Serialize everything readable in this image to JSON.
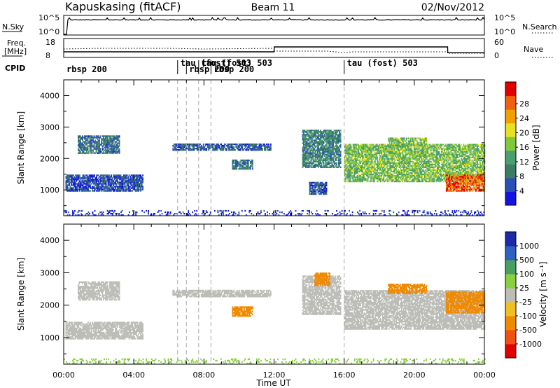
{
  "header": {
    "station": "Kapuskasing (fitACF)",
    "beam": "Beam 11",
    "date": "02/Nov/2012"
  },
  "panels": {
    "nsky_label": "N.Sky",
    "nsearch_label": "N.Search",
    "freq_label_1": "Freq.",
    "freq_label_2": "[MHz]",
    "nave_label": "Nave",
    "cpid_label": "CPID",
    "nsky_ticks": [
      "10^5",
      "10^0"
    ],
    "nsearch_ticks": [
      "10^5",
      "10^0"
    ],
    "freq_ticks": [
      "18",
      "8"
    ],
    "nave_ticks": [
      "60",
      "0"
    ]
  },
  "colors": {
    "power": [
      "#1414e0",
      "#2a50b8",
      "#3c7c64",
      "#4a9e70",
      "#82c83c",
      "#e8e020",
      "#f0a000",
      "#f06010",
      "#e00000"
    ],
    "velocity": [
      "#1a2aa8",
      "#3060c0",
      "#48a060",
      "#88d040",
      "#bdbdb8",
      "#f0c020",
      "#f08a00",
      "#f05010",
      "#e00000"
    ],
    "ground_scatter": "#bdbdb8"
  },
  "chart_data": [
    {
      "type": "line",
      "name": "nsky-nsearch",
      "ylabel": "N.Sky",
      "ylabel_right": "N.Search",
      "x": [
        0,
        0.2,
        2,
        4,
        6,
        8,
        10,
        12,
        14,
        16,
        18,
        20,
        22,
        24
      ],
      "series": [
        {
          "values": [
            0,
            4.2,
            4.3,
            4.3,
            4.2,
            4.3,
            4.2,
            4.3,
            4.2,
            4.2,
            4.2,
            4.2,
            4.3,
            4.3
          ]
        }
      ]
    },
    {
      "type": "line",
      "name": "freq-nave",
      "ylabel": "Freq. [MHz]",
      "ylabel_right": "Nave",
      "ylim": [
        8,
        18
      ],
      "x": [
        0,
        12,
        12.01,
        21.9,
        21.91,
        24
      ],
      "series": [
        {
          "values": [
            10.8,
            10.8,
            13.6,
            13.6,
            10.3,
            10.3
          ]
        }
      ]
    },
    {
      "type": "table",
      "name": "cpid",
      "ylabel": "CPID",
      "entries": [
        {
          "time": 0.0,
          "label": "rbsp 200"
        },
        {
          "time": 6.5,
          "label": "tau (fost) 503"
        },
        {
          "time": 7.0,
          "label": "rbsp 200"
        },
        {
          "time": 7.7,
          "label": "tau (fost) 503"
        },
        {
          "time": 8.4,
          "label": "rbsp 200"
        },
        {
          "time": 16.0,
          "label": "tau (fost) 503"
        }
      ]
    },
    {
      "type": "heatmap",
      "name": "power",
      "xlabel": "",
      "ylabel": "Slant Range [km]",
      "xlim": [
        0,
        24
      ],
      "ylim": [
        180,
        4500
      ],
      "xticks": [
        "00:00",
        "04:00",
        "08:00",
        "12:00",
        "16:00",
        "20:00",
        "00:00"
      ],
      "yticks": [
        1000,
        2000,
        3000,
        4000
      ],
      "colorbar_label": "Power [dB]",
      "colorbar_ticks": [
        "4",
        "8",
        "12",
        "16",
        "20",
        "24",
        "28"
      ],
      "colorbar_range": [
        0,
        30
      ],
      "regions": [
        {
          "t0": 0.1,
          "t1": 4.5,
          "r0": 950,
          "r1": 1450,
          "level": 5
        },
        {
          "t0": 0.8,
          "t1": 3.2,
          "r0": 2150,
          "r1": 2700,
          "level": 7
        },
        {
          "t0": 6.2,
          "t1": 11.8,
          "r0": 2250,
          "r1": 2450,
          "level": 6
        },
        {
          "t0": 9.6,
          "t1": 10.8,
          "r0": 1650,
          "r1": 1950,
          "level": 8
        },
        {
          "t0": 13.6,
          "t1": 15.8,
          "r0": 1700,
          "r1": 2900,
          "level": 9
        },
        {
          "t0": 14.0,
          "t1": 15.0,
          "r0": 850,
          "r1": 1250,
          "level": 5
        },
        {
          "t0": 16.0,
          "t1": 24.0,
          "r0": 1250,
          "r1": 2450,
          "level": 14
        },
        {
          "t0": 21.8,
          "t1": 24.0,
          "r0": 950,
          "r1": 1450,
          "level": 25
        },
        {
          "t0": 18.5,
          "t1": 20.7,
          "r0": 2350,
          "r1": 2650,
          "level": 14
        },
        {
          "t0": 0.0,
          "t1": 24.0,
          "r0": 180,
          "r1": 330,
          "level": 3
        }
      ]
    },
    {
      "type": "heatmap",
      "name": "velocity",
      "xlabel": "Time UT",
      "ylabel": "Slant Range [km]",
      "xlim": [
        0,
        24
      ],
      "ylim": [
        180,
        4500
      ],
      "xticks": [
        "00:00",
        "04:00",
        "08:00",
        "12:00",
        "16:00",
        "20:00",
        "00:00"
      ],
      "yticks": [
        1000,
        2000,
        3000,
        4000
      ],
      "colorbar_label": "Velocity [m s⁻¹]",
      "colorbar_ticks": [
        "1000",
        "500",
        "100",
        "25",
        "-25",
        "-100",
        "-500",
        "-1000"
      ],
      "colorbar_range": [
        -1000,
        1000
      ],
      "regions": [
        {
          "t0": 0.1,
          "t1": 4.5,
          "r0": 950,
          "r1": 1450,
          "value": 0,
          "ground": true
        },
        {
          "t0": 0.8,
          "t1": 3.2,
          "r0": 2150,
          "r1": 2700,
          "value": 0,
          "ground": true
        },
        {
          "t0": 6.2,
          "t1": 11.8,
          "r0": 2250,
          "r1": 2450,
          "value": 0,
          "ground": true
        },
        {
          "t0": 9.6,
          "t1": 10.8,
          "r0": 1650,
          "r1": 1950,
          "value": -300
        },
        {
          "t0": 13.6,
          "t1": 15.8,
          "r0": 1700,
          "r1": 2900,
          "value": 0,
          "ground": true
        },
        {
          "t0": 14.3,
          "t1": 15.2,
          "r0": 2600,
          "r1": 3000,
          "value": -400
        },
        {
          "t0": 16.0,
          "t1": 24.0,
          "r0": 1250,
          "r1": 2450,
          "value": 0,
          "ground": true
        },
        {
          "t0": 18.5,
          "t1": 20.7,
          "r0": 2350,
          "r1": 2650,
          "value": -400
        },
        {
          "t0": 21.8,
          "t1": 24.0,
          "r0": 1750,
          "r1": 2400,
          "value": -300
        },
        {
          "t0": 0.0,
          "t1": 24.0,
          "r0": 180,
          "r1": 330,
          "value": 60
        }
      ]
    }
  ]
}
